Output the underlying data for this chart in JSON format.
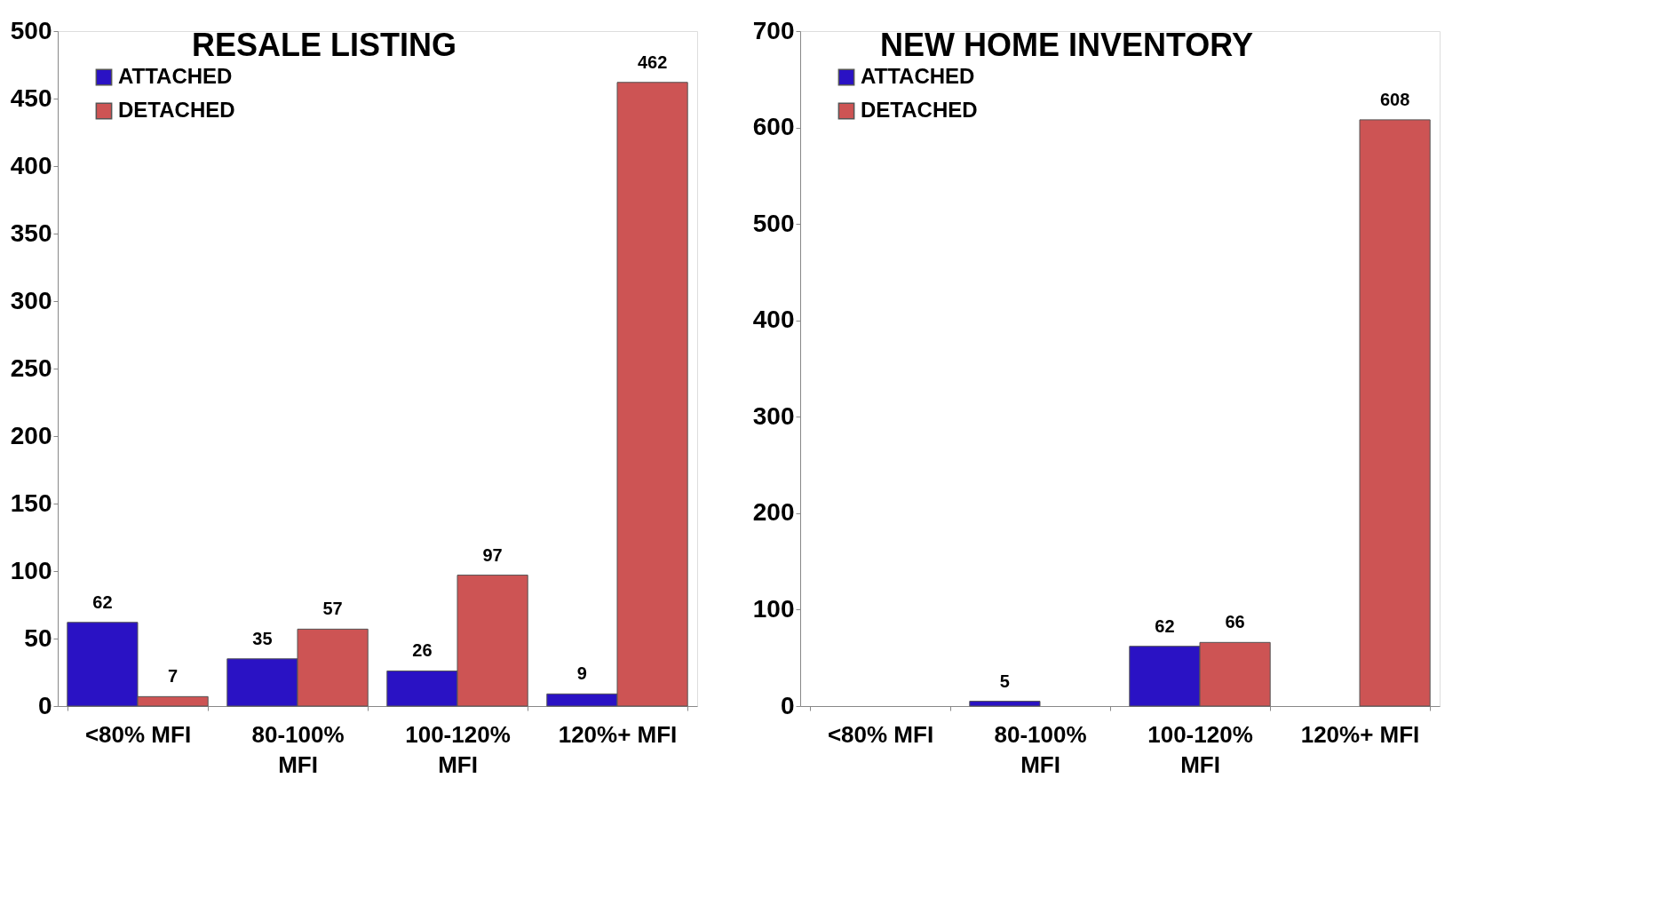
{
  "chart_data": [
    {
      "type": "bar",
      "title": "RESALE LISTING",
      "categories": [
        "<80% MFI",
        "80-100% MFI",
        "100-120% MFI",
        "120%+ MFI"
      ],
      "series": [
        {
          "name": "ATTACHED",
          "color": "#2a12c4",
          "values": [
            62,
            35,
            26,
            9
          ]
        },
        {
          "name": "DETACHED",
          "color": "#cd5454",
          "values": [
            7,
            57,
            97,
            462
          ]
        }
      ],
      "ylim": [
        0,
        500
      ],
      "yticks": [
        0,
        50,
        100,
        150,
        200,
        250,
        300,
        350,
        400,
        450,
        500
      ],
      "grid": false,
      "legend": "top left",
      "data_labels": true
    },
    {
      "type": "bar",
      "title": "NEW HOME INVENTORY",
      "categories": [
        "<80% MFI",
        "80-100% MFI",
        "100-120% MFI",
        "120%+ MFI"
      ],
      "series": [
        {
          "name": "ATTACHED",
          "color": "#2a12c4",
          "values": [
            null,
            5,
            62,
            null
          ]
        },
        {
          "name": "DETACHED",
          "color": "#cd5454",
          "values": [
            null,
            null,
            66,
            608
          ]
        }
      ],
      "ylim": [
        0,
        700
      ],
      "yticks": [
        0,
        100,
        200,
        300,
        400,
        500,
        600,
        700
      ],
      "grid": false,
      "legend": "top left",
      "data_labels": true
    }
  ]
}
